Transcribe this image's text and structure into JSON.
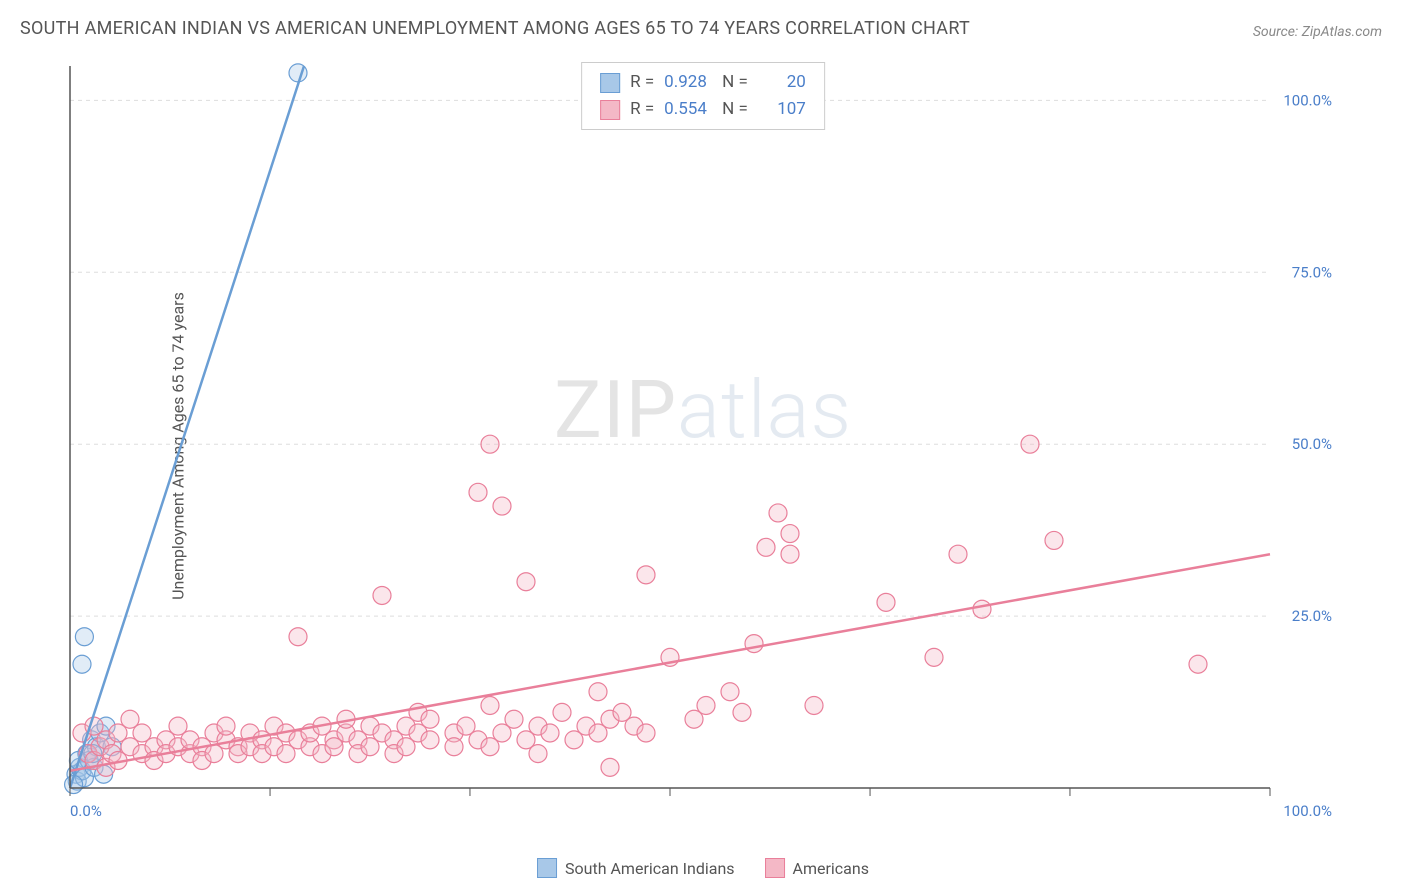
{
  "title": "SOUTH AMERICAN INDIAN VS AMERICAN UNEMPLOYMENT AMONG AGES 65 TO 74 YEARS CORRELATION CHART",
  "source": "Source: ZipAtlas.com",
  "ylabel": "Unemployment Among Ages 65 to 74 years",
  "watermark_a": "ZIP",
  "watermark_b": "atlas",
  "chart": {
    "type": "scatter",
    "xlim": [
      0,
      100
    ],
    "ylim": [
      0,
      105
    ],
    "x_ticks": [
      0,
      16.67,
      33.33,
      50,
      66.67,
      83.33,
      100
    ],
    "x_labels_full": {
      "0": "0.0%",
      "100": "100.0%"
    },
    "y_gridlines": [
      25,
      50,
      75,
      100
    ],
    "y_labels": {
      "25": "25.0%",
      "50": "50.0%",
      "75": "75.0%",
      "100": "100.0%"
    },
    "origin_label": "0.0%",
    "background_color": "#ffffff",
    "grid_color": "#dddddd",
    "axis_color": "#555555",
    "tick_label_color": "#4a7ec9",
    "marker_radius": 9,
    "marker_fill_opacity": 0.35,
    "series": [
      {
        "name": "South American Indians",
        "color_stroke": "#6a9ed4",
        "color_fill": "#a8c8e8",
        "R": "0.928",
        "N": "20",
        "trend": {
          "x1": 0,
          "y1": 0,
          "x2": 19.5,
          "y2": 105
        },
        "points": [
          [
            0.5,
            2
          ],
          [
            0.6,
            1
          ],
          [
            0.8,
            3
          ],
          [
            1,
            2.5
          ],
          [
            1.2,
            1.5
          ],
          [
            1.4,
            5
          ],
          [
            1.6,
            4
          ],
          [
            1.8,
            7
          ],
          [
            2,
            3
          ],
          [
            2.2,
            6
          ],
          [
            2.5,
            8
          ],
          [
            2.8,
            2
          ],
          [
            1,
            18
          ],
          [
            1.2,
            22
          ],
          [
            3,
            9
          ],
          [
            3.5,
            6
          ],
          [
            0.3,
            0.5
          ],
          [
            0.7,
            4
          ],
          [
            1.9,
            5
          ],
          [
            19,
            104
          ]
        ]
      },
      {
        "name": "Americans",
        "color_stroke": "#e97f9a",
        "color_fill": "#f4b8c6",
        "R": "0.554",
        "N": "107",
        "trend": {
          "x1": 0,
          "y1": 2.5,
          "x2": 100,
          "y2": 34
        },
        "points": [
          [
            1,
            8
          ],
          [
            1.5,
            5
          ],
          [
            2,
            9
          ],
          [
            2,
            4
          ],
          [
            2.5,
            6
          ],
          [
            3,
            3
          ],
          [
            3,
            7
          ],
          [
            3.5,
            5
          ],
          [
            4,
            8
          ],
          [
            4,
            4
          ],
          [
            5,
            6
          ],
          [
            5,
            10
          ],
          [
            6,
            5
          ],
          [
            6,
            8
          ],
          [
            7,
            6
          ],
          [
            7,
            4
          ],
          [
            8,
            7
          ],
          [
            8,
            5
          ],
          [
            9,
            6
          ],
          [
            9,
            9
          ],
          [
            10,
            5
          ],
          [
            10,
            7
          ],
          [
            11,
            6
          ],
          [
            11,
            4
          ],
          [
            12,
            8
          ],
          [
            12,
            5
          ],
          [
            13,
            7
          ],
          [
            13,
            9
          ],
          [
            14,
            6
          ],
          [
            14,
            5
          ],
          [
            15,
            8
          ],
          [
            15,
            6
          ],
          [
            16,
            7
          ],
          [
            16,
            5
          ],
          [
            17,
            9
          ],
          [
            17,
            6
          ],
          [
            18,
            8
          ],
          [
            18,
            5
          ],
          [
            19,
            7
          ],
          [
            19,
            22
          ],
          [
            20,
            6
          ],
          [
            20,
            8
          ],
          [
            21,
            5
          ],
          [
            21,
            9
          ],
          [
            22,
            7
          ],
          [
            22,
            6
          ],
          [
            23,
            8
          ],
          [
            23,
            10
          ],
          [
            24,
            7
          ],
          [
            24,
            5
          ],
          [
            25,
            9
          ],
          [
            25,
            6
          ],
          [
            26,
            8
          ],
          [
            26,
            28
          ],
          [
            27,
            7
          ],
          [
            27,
            5
          ],
          [
            28,
            9
          ],
          [
            28,
            6
          ],
          [
            29,
            8
          ],
          [
            29,
            11
          ],
          [
            30,
            7
          ],
          [
            30,
            10
          ],
          [
            32,
            8
          ],
          [
            32,
            6
          ],
          [
            33,
            9
          ],
          [
            34,
            7
          ],
          [
            34,
            43
          ],
          [
            35,
            6
          ],
          [
            35,
            12
          ],
          [
            35,
            50
          ],
          [
            36,
            41
          ],
          [
            36,
            8
          ],
          [
            37,
            10
          ],
          [
            38,
            7
          ],
          [
            38,
            30
          ],
          [
            39,
            9
          ],
          [
            39,
            5
          ],
          [
            40,
            8
          ],
          [
            41,
            11
          ],
          [
            42,
            7
          ],
          [
            43,
            9
          ],
          [
            44,
            8
          ],
          [
            44,
            14
          ],
          [
            45,
            10
          ],
          [
            45,
            3
          ],
          [
            46,
            11
          ],
          [
            47,
            9
          ],
          [
            48,
            8
          ],
          [
            48,
            31
          ],
          [
            50,
            19
          ],
          [
            52,
            10
          ],
          [
            53,
            12
          ],
          [
            55,
            14
          ],
          [
            56,
            11
          ],
          [
            57,
            21
          ],
          [
            58,
            35
          ],
          [
            59,
            40
          ],
          [
            60,
            34
          ],
          [
            60,
            37
          ],
          [
            62,
            12
          ],
          [
            68,
            27
          ],
          [
            72,
            19
          ],
          [
            74,
            34
          ],
          [
            76,
            26
          ],
          [
            80,
            50
          ],
          [
            82,
            36
          ],
          [
            94,
            18
          ]
        ]
      }
    ]
  },
  "stats_box": {
    "rows": [
      {
        "swatch_fill": "#a8c8e8",
        "swatch_stroke": "#6a9ed4",
        "R_label": "R =",
        "R": "0.928",
        "N_label": "N =",
        "N": "20"
      },
      {
        "swatch_fill": "#f4b8c6",
        "swatch_stroke": "#e97f9a",
        "R_label": "R =",
        "R": "0.554",
        "N_label": "N =",
        "N": "107"
      }
    ]
  },
  "bottom_legend": [
    {
      "swatch_fill": "#a8c8e8",
      "swatch_stroke": "#6a9ed4",
      "label": "South American Indians"
    },
    {
      "swatch_fill": "#f4b8c6",
      "swatch_stroke": "#e97f9a",
      "label": "Americans"
    }
  ]
}
